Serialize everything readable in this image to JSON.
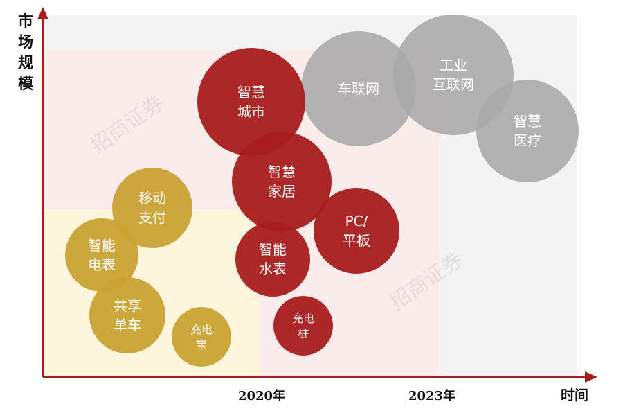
{
  "chart_data": {
    "type": "scatter",
    "title": "",
    "ylabel": "市场规模",
    "xlabel": "时间",
    "x_ticks": [
      "2020年",
      "2023年"
    ],
    "watermark": "招商证券",
    "colors": {
      "gold": "#c9a233",
      "red": "#a81e1e",
      "gray": "#a8a8a8",
      "zone_yellow": "#fdf6dc",
      "zone_pink": "#fbecec",
      "zone_gray": "#f3f3f3"
    },
    "series": [
      {
        "color": "gold",
        "points": [
          {
            "label": "移动\n支付"
          },
          {
            "label": "智能\n电表"
          },
          {
            "label": "共享\n单车"
          },
          {
            "label": "充电\n宝"
          }
        ]
      },
      {
        "color": "red",
        "points": [
          {
            "label": "智慧\n城市"
          },
          {
            "label": "智慧\n家居"
          },
          {
            "label": "PC/\n平板"
          },
          {
            "label": "智能\n水表"
          },
          {
            "label": "充电\n桩"
          }
        ]
      },
      {
        "color": "gray",
        "points": [
          {
            "label": "车联网"
          },
          {
            "label": "工业\n互联网"
          },
          {
            "label": "智慧\n医疗"
          }
        ]
      }
    ]
  }
}
